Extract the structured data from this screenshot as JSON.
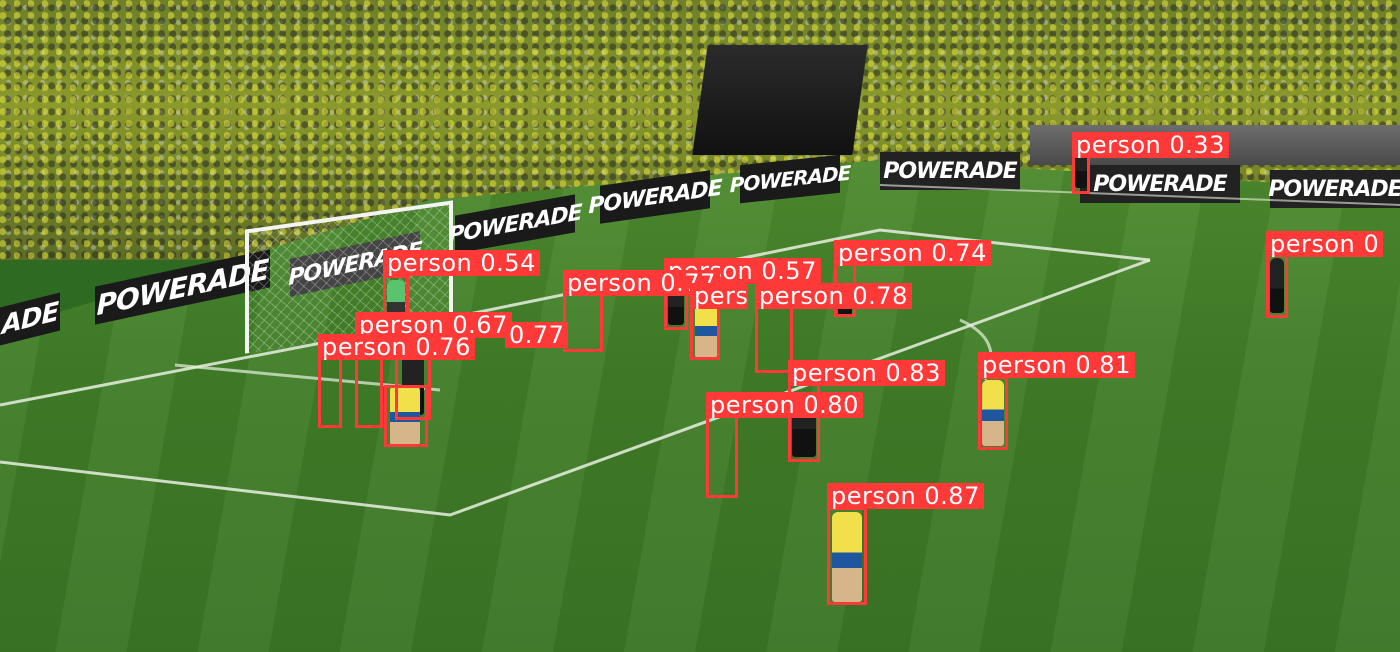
{
  "image": {
    "ad_text": "POWERADE",
    "ad_text_short": "ADE",
    "box_color": "#ff3838",
    "label_text_color": "#ffffff"
  },
  "detections": [
    {
      "label": "person 0.54",
      "class": "person",
      "confidence": 0.54
    },
    {
      "label": "person 0.57",
      "class": "person",
      "confidence": 0.57
    },
    {
      "label": "person 0.77",
      "class": "person",
      "confidence": 0.77
    },
    {
      "label": "person 0.74",
      "class": "person",
      "confidence": 0.74
    },
    {
      "label": "person 0.78",
      "class": "person",
      "confidence": 0.78
    },
    {
      "label": "person 0.33",
      "class": "person",
      "confidence": 0.33
    },
    {
      "label": "person 0",
      "class": "person",
      "confidence": 0
    },
    {
      "label": "person 0.67",
      "class": "person",
      "confidence": 0.67
    },
    {
      "label": "0.77",
      "class": "person",
      "confidence": 0.77
    },
    {
      "label": "person 0.76",
      "class": "person",
      "confidence": 0.76
    },
    {
      "label": "person 0.83",
      "class": "person",
      "confidence": 0.83
    },
    {
      "label": "person 0.81",
      "class": "person",
      "confidence": 0.81
    },
    {
      "label": "person 0.80",
      "class": "person",
      "confidence": 0.8
    },
    {
      "label": "person 0.87",
      "class": "person",
      "confidence": 0.87
    },
    {
      "label": "pers",
      "class": "person",
      "confidence": null
    }
  ]
}
